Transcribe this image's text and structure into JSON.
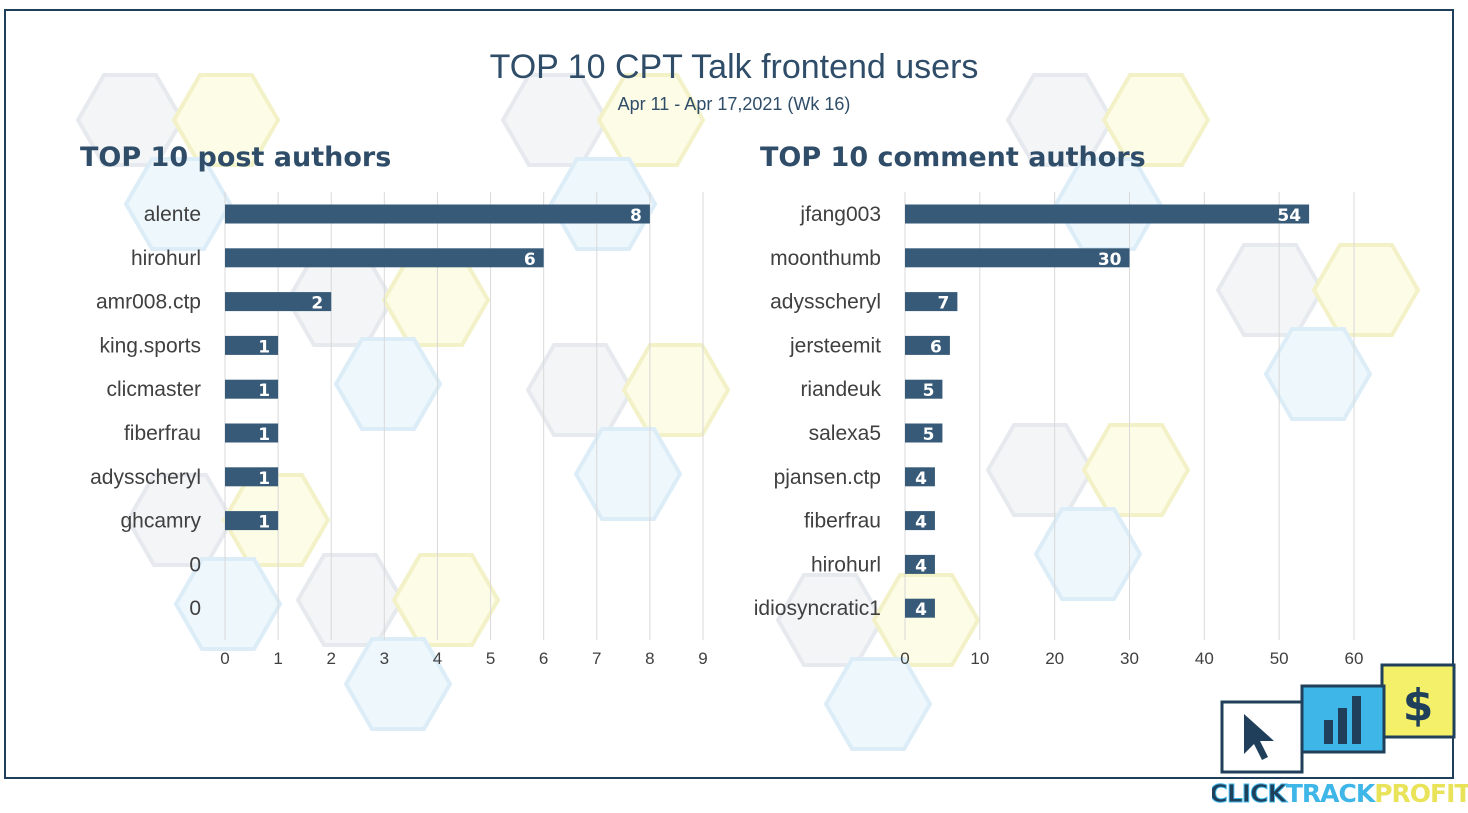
{
  "header": {
    "title": "TOP 10 CPT Talk frontend users",
    "subtitle": "Apr 11 - Apr 17,2021 (Wk 16)"
  },
  "colors": {
    "bar": "#365a78",
    "title": "#2f4d68",
    "grid": "#d9d9d9"
  },
  "logo": {
    "text_part1": "CLICK",
    "text_part2": "TRACK",
    "text_part3": "PROFIT"
  },
  "chart_data": [
    {
      "type": "bar",
      "orientation": "horizontal",
      "title": "TOP 10 post authors",
      "categories": [
        "alente",
        "hirohurl",
        "amr008.ctp",
        "king.sports",
        "clicmaster",
        "fiberfrau",
        "adysscheryl",
        "ghcamry",
        "0",
        "0"
      ],
      "values": [
        8,
        6,
        2,
        1,
        1,
        1,
        1,
        1,
        null,
        null
      ],
      "xlim": [
        0,
        9
      ],
      "xticks": [
        0,
        1,
        2,
        3,
        4,
        5,
        6,
        7,
        8,
        9
      ],
      "grid": true,
      "data_labels": true
    },
    {
      "type": "bar",
      "orientation": "horizontal",
      "title": "TOP 10 comment authors",
      "categories": [
        "jfang003",
        "moonthumb",
        "adysscheryl",
        "jersteemit",
        "riandeuk",
        "salexa5",
        "pjansen.ctp",
        "fiberfrau",
        "hirohurl",
        "idiosyncratic1"
      ],
      "values": [
        54,
        30,
        7,
        6,
        5,
        5,
        4,
        4,
        4,
        4
      ],
      "xlim": [
        0,
        60
      ],
      "xticks": [
        0,
        10,
        20,
        30,
        40,
        50,
        60
      ],
      "grid": true,
      "data_labels": true
    }
  ]
}
